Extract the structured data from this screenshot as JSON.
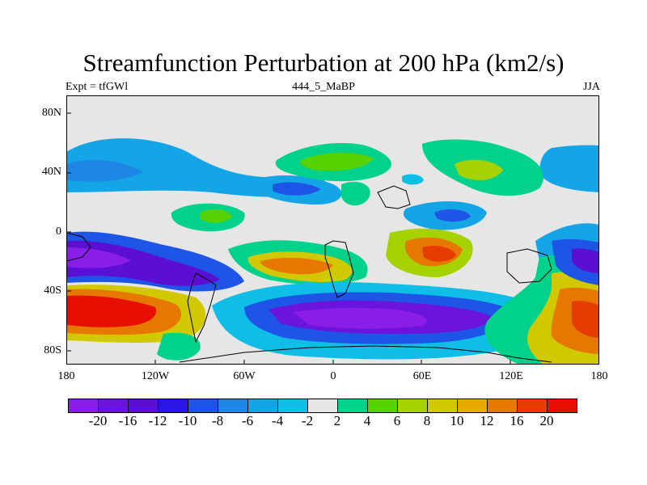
{
  "title": "Streamfunction Perturbation at 200 hPa (km2/s)",
  "left_label": "Expt = tfGWl",
  "center_label": "444_5_MaBP",
  "right_label": "JJA",
  "lat_labels": [
    "80N",
    "40N",
    "0",
    "40S",
    "80S"
  ],
  "lon_labels": [
    "180",
    "120W",
    "60W",
    "0",
    "60E",
    "120E",
    "180"
  ],
  "colorbar": {
    "colors": [
      "#8a1ee6",
      "#6a14dc",
      "#5a0fd2",
      "#2a14e6",
      "#1e55e6",
      "#1e87e6",
      "#14a5e6",
      "#0fbee6",
      "#e6e6e6",
      "#00d28c",
      "#55d200",
      "#a5d200",
      "#d2c800",
      "#e6aa00",
      "#e67800",
      "#e63c00",
      "#e60f00"
    ],
    "labels": [
      "-20",
      "-16",
      "-12",
      "-10",
      "-8",
      "-6",
      "-4",
      "-2",
      "2",
      "4",
      "6",
      "8",
      "10",
      "12",
      "16",
      "20"
    ]
  }
}
